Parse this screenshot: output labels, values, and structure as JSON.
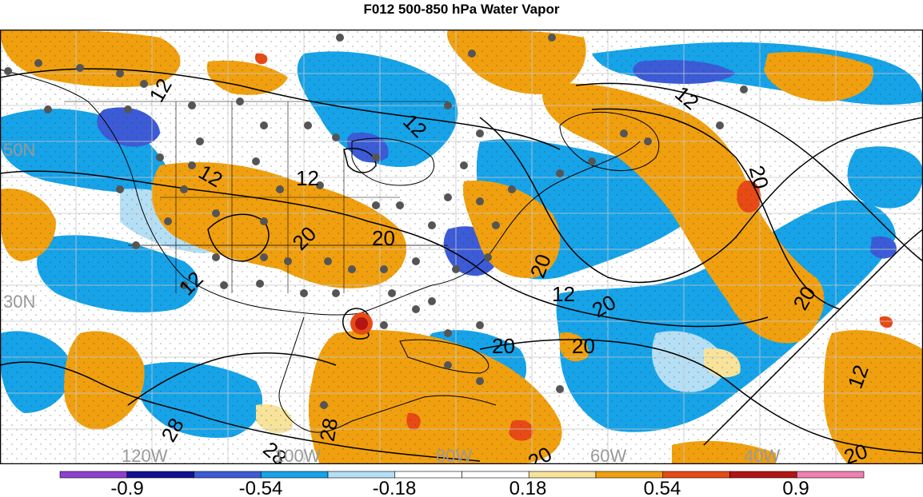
{
  "title": "F012 500-850 hPa Water Vapor",
  "map": {
    "lat_labels": [
      "50N",
      "30N"
    ],
    "lon_labels": [
      "120W",
      "100W",
      "80W",
      "60W",
      "40W"
    ],
    "contour_labels": [
      "12",
      "12",
      "12",
      "12",
      "12",
      "12",
      "12",
      "12",
      "20",
      "20",
      "20",
      "20",
      "20",
      "20",
      "20",
      "20",
      "28",
      "28",
      "28",
      "20",
      "20"
    ],
    "colors": {
      "strong_neg": "#3c5bd6",
      "neg": "#16a3e8",
      "weak_neg": "#b5dff5",
      "weak_pos": "#f7e39a",
      "pos": "#f0a00e",
      "strong_pos": "#e84a16",
      "extreme_pos": "#b31414"
    }
  },
  "colorbar": {
    "colors": [
      "#8f3fd0",
      "#101090",
      "#3c5bd6",
      "#16a3e8",
      "#b5dff5",
      "#ffffff",
      "#ffffff",
      "#f7e39a",
      "#f0a00e",
      "#e84a16",
      "#b31414",
      "#f080b0"
    ],
    "labels": [
      "-0.9",
      "-0.54",
      "-0.18",
      "0.18",
      "0.54",
      "0.9"
    ]
  }
}
